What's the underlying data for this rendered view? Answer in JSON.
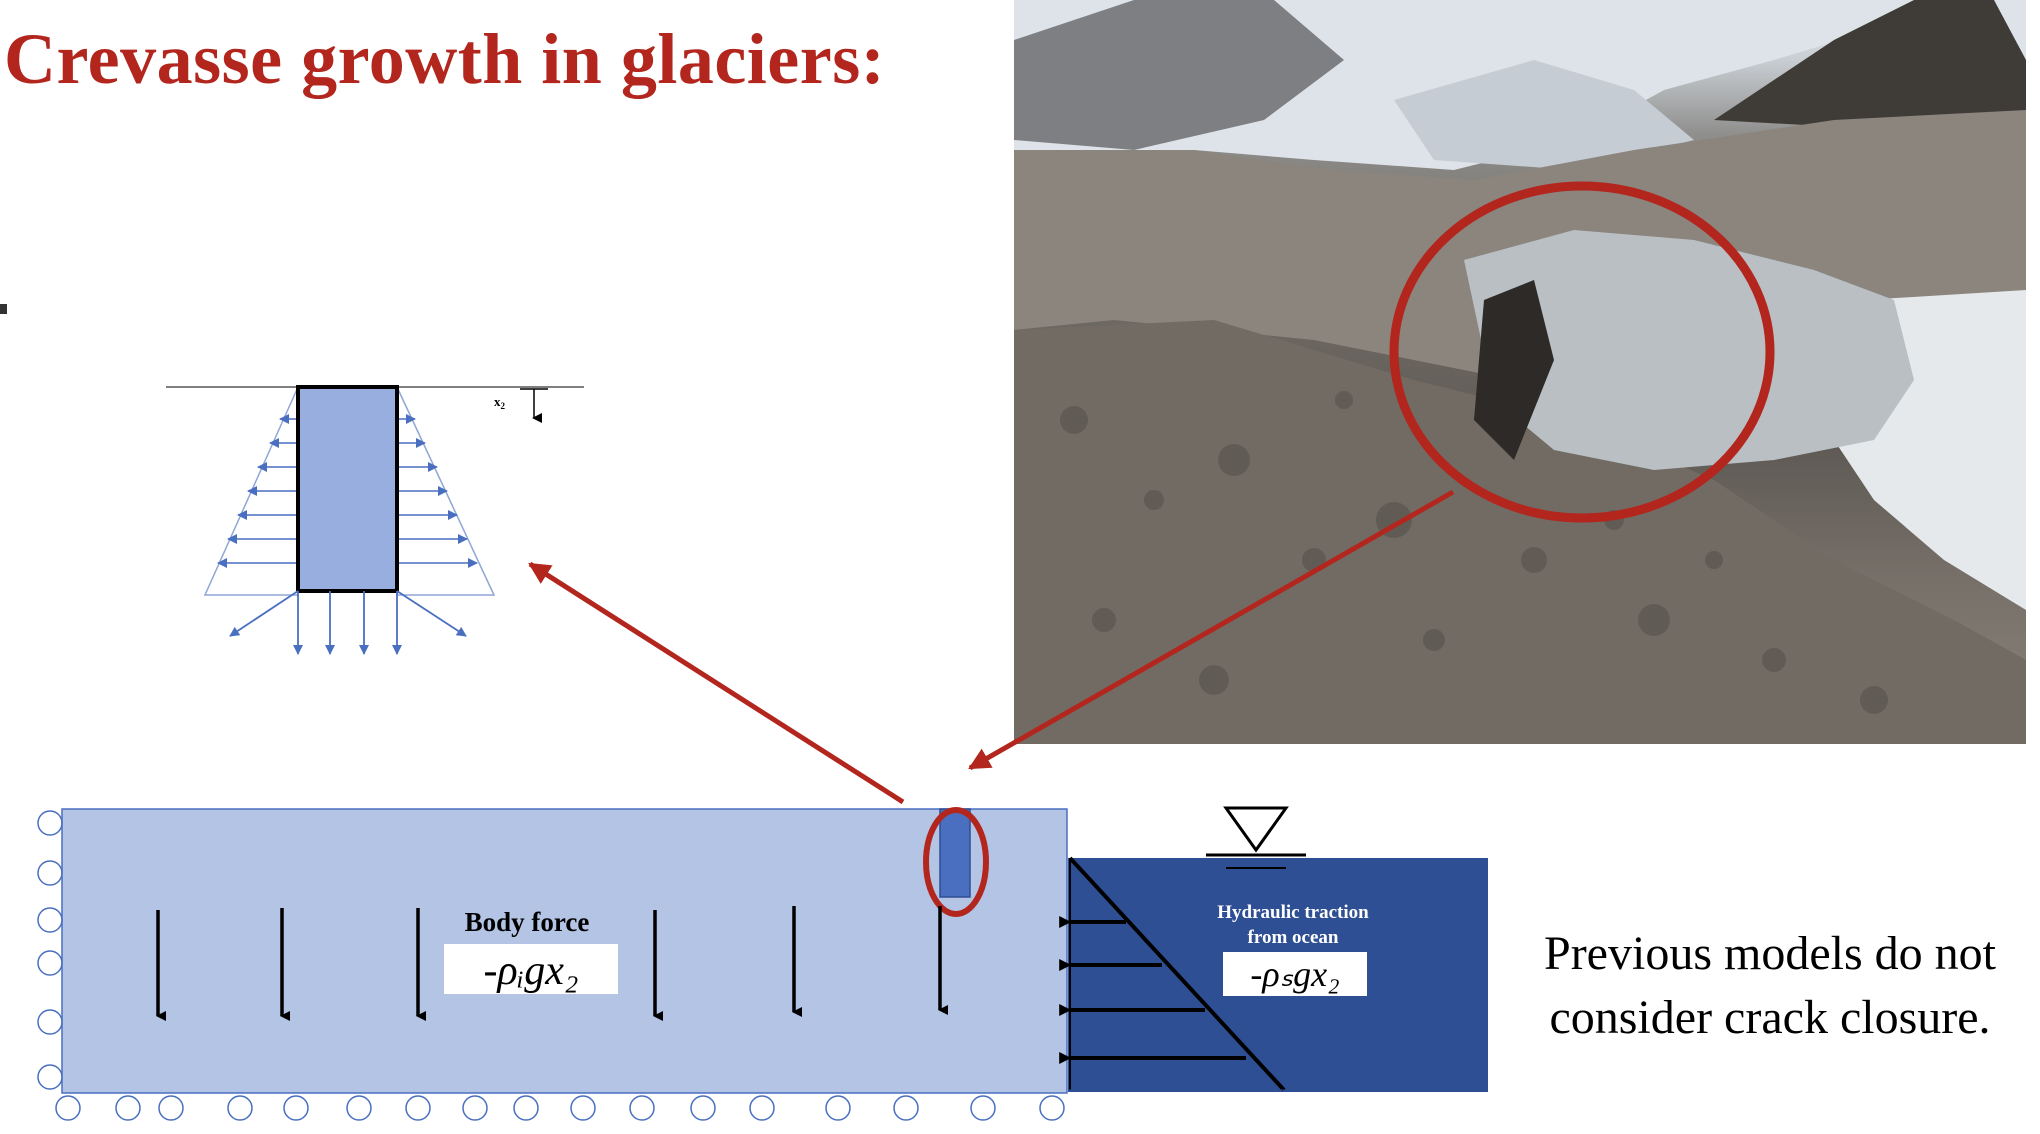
{
  "slide": {
    "title": "Crevasse growth in glaciers:",
    "caption": "Previous models do not consider crack closure.",
    "accent_color": "#b3261e"
  },
  "photo": {
    "subject": "debris-covered glacier with exposed ice cliff and crevasse",
    "highlight": "red ellipse around crevasse"
  },
  "inset": {
    "axis_label": "x",
    "axis_subscript": "2"
  },
  "glacier": {
    "body_force_label": "Body force",
    "body_force_formula": "-ρᵢgx₂",
    "ocean_label_line1": "Hydraulic traction",
    "ocean_label_line2": "from ocean",
    "ocean_formula": "-ρₛgx₂",
    "ice_color": "#b4c4e4",
    "ocean_color": "#2e4f93",
    "crevasse_color": "#4a6fc0"
  }
}
